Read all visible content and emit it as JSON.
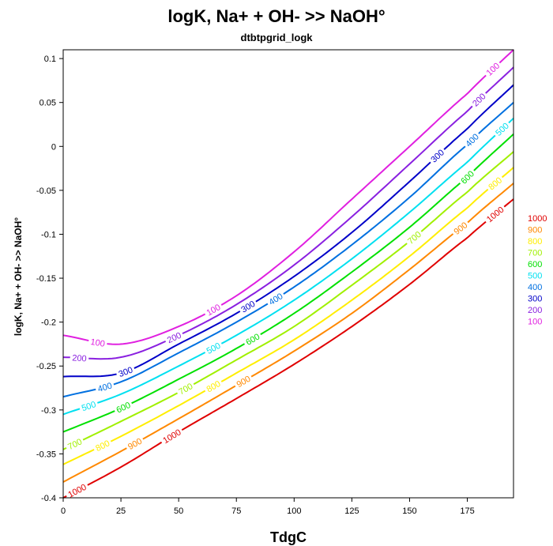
{
  "chart_data": {
    "type": "line",
    "title": "logK, Na+ + OH- >> NaOH°",
    "subtitle": "dtbtpgrid_logk",
    "xlabel": "TdgC",
    "ylabel": "logK, Na+ + OH- >> NaOH°",
    "xlim": [
      0,
      195
    ],
    "ylim": [
      -0.4,
      0.11
    ],
    "x_ticks": [
      0,
      25,
      50,
      75,
      100,
      125,
      150,
      175
    ],
    "y_ticks": [
      0.1,
      0.05,
      0,
      -0.05,
      -0.1,
      -0.15,
      -0.2,
      -0.25,
      -0.3,
      -0.35,
      -0.4
    ],
    "y_tick_labels": [
      "0.1",
      "0.05",
      "0",
      "-0.05",
      "-0.1",
      "-0.15",
      "-0.2",
      "-0.25",
      "-0.3",
      "-0.35",
      "-0.4"
    ],
    "grid": false,
    "legend_position": "right",
    "x": [
      0,
      25,
      50,
      75,
      100,
      125,
      150,
      175,
      195
    ],
    "series": [
      {
        "name": "100",
        "color": "#e020e0",
        "values": [
          -0.215,
          -0.225,
          -0.205,
          -0.17,
          -0.12,
          -0.06,
          0.0,
          0.06,
          0.11
        ]
      },
      {
        "name": "200",
        "color": "#8a20e0",
        "values": [
          -0.24,
          -0.24,
          -0.215,
          -0.18,
          -0.135,
          -0.08,
          -0.02,
          0.04,
          0.09
        ]
      },
      {
        "name": "300",
        "color": "#0000c8",
        "values": [
          -0.262,
          -0.258,
          -0.225,
          -0.19,
          -0.148,
          -0.098,
          -0.04,
          0.02,
          0.07
        ]
      },
      {
        "name": "400",
        "color": "#0070e0",
        "values": [
          -0.285,
          -0.268,
          -0.235,
          -0.2,
          -0.16,
          -0.112,
          -0.058,
          0.002,
          0.05
        ]
      },
      {
        "name": "500",
        "color": "#00e0f0",
        "values": [
          -0.305,
          -0.282,
          -0.25,
          -0.215,
          -0.175,
          -0.128,
          -0.075,
          -0.018,
          0.032
        ]
      },
      {
        "name": "600",
        "color": "#00e000",
        "values": [
          -0.325,
          -0.298,
          -0.265,
          -0.23,
          -0.19,
          -0.143,
          -0.092,
          -0.035,
          0.014
        ]
      },
      {
        "name": "700",
        "color": "#a0f000",
        "values": [
          -0.345,
          -0.313,
          -0.28,
          -0.243,
          -0.205,
          -0.158,
          -0.108,
          -0.052,
          -0.006
        ]
      },
      {
        "name": "800",
        "color": "#ffee00",
        "values": [
          -0.362,
          -0.33,
          -0.295,
          -0.258,
          -0.22,
          -0.175,
          -0.125,
          -0.07,
          -0.024
        ]
      },
      {
        "name": "900",
        "color": "#ff8800",
        "values": [
          -0.382,
          -0.347,
          -0.31,
          -0.272,
          -0.233,
          -0.19,
          -0.14,
          -0.087,
          -0.042
        ]
      },
      {
        "name": "1000",
        "color": "#e00000",
        "values": [
          -0.4,
          -0.365,
          -0.325,
          -0.287,
          -0.248,
          -0.205,
          -0.157,
          -0.104,
          -0.06
        ]
      }
    ],
    "legend": [
      {
        "label": "1000",
        "color": "#e00000"
      },
      {
        "label": "900",
        "color": "#ff8800"
      },
      {
        "label": "800",
        "color": "#ffee00"
      },
      {
        "label": "700",
        "color": "#a0f000"
      },
      {
        "label": "600",
        "color": "#00e000"
      },
      {
        "label": "500",
        "color": "#00e0f0"
      },
      {
        "label": "400",
        "color": "#0070e0"
      },
      {
        "label": "300",
        "color": "#0000c8"
      },
      {
        "label": "200",
        "color": "#8a20e0"
      },
      {
        "label": "100",
        "color": "#e020e0"
      }
    ],
    "curve_labels": [
      {
        "text": "100",
        "series": "100",
        "x": 15
      },
      {
        "text": "100",
        "series": "100",
        "x": 65
      },
      {
        "text": "100",
        "series": "100",
        "x": 186
      },
      {
        "text": "200",
        "series": "200",
        "x": 7
      },
      {
        "text": "200",
        "series": "200",
        "x": 48
      },
      {
        "text": "200",
        "series": "200",
        "x": 180
      },
      {
        "text": "300",
        "series": "300",
        "x": 27
      },
      {
        "text": "300",
        "series": "300",
        "x": 80
      },
      {
        "text": "300",
        "series": "300",
        "x": 162
      },
      {
        "text": "400",
        "series": "400",
        "x": 18
      },
      {
        "text": "400",
        "series": "400",
        "x": 92
      },
      {
        "text": "400",
        "series": "400",
        "x": 177
      },
      {
        "text": "500",
        "series": "500",
        "x": 11
      },
      {
        "text": "500",
        "series": "500",
        "x": 65
      },
      {
        "text": "500",
        "series": "500",
        "x": 190
      },
      {
        "text": "600",
        "series": "600",
        "x": 26
      },
      {
        "text": "600",
        "series": "600",
        "x": 82
      },
      {
        "text": "600",
        "series": "600",
        "x": 175
      },
      {
        "text": "700",
        "series": "700",
        "x": 5
      },
      {
        "text": "700",
        "series": "700",
        "x": 53
      },
      {
        "text": "700",
        "series": "700",
        "x": 152
      },
      {
        "text": "800",
        "series": "800",
        "x": 17
      },
      {
        "text": "800",
        "series": "800",
        "x": 65
      },
      {
        "text": "800",
        "series": "800",
        "x": 187
      },
      {
        "text": "900",
        "series": "900",
        "x": 31
      },
      {
        "text": "900",
        "series": "900",
        "x": 78
      },
      {
        "text": "900",
        "series": "900",
        "x": 172
      },
      {
        "text": "1000",
        "series": "1000",
        "x": 6
      },
      {
        "text": "1000",
        "series": "1000",
        "x": 47
      },
      {
        "text": "1000",
        "series": "1000",
        "x": 187
      }
    ]
  }
}
